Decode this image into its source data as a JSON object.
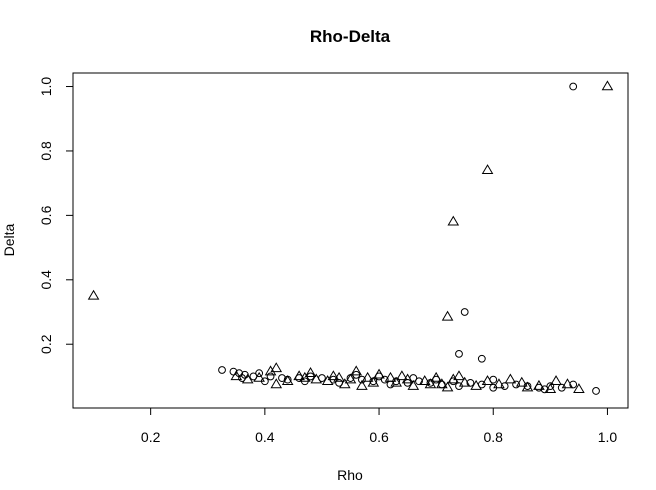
{
  "chart_data": {
    "type": "scatter",
    "title": "Rho-Delta",
    "xlabel": "Rho",
    "ylabel": "Delta",
    "xlim": [
      0.064,
      1.036
    ],
    "ylim": [
      0.002,
      1.042
    ],
    "x_ticks": [
      0.2,
      0.4,
      0.6,
      0.8,
      1.0
    ],
    "x_tick_labels": [
      "0.2",
      "0.4",
      "0.6",
      "0.8",
      "1.0"
    ],
    "y_ticks": [
      0.2,
      0.4,
      0.6,
      0.8,
      1.0
    ],
    "y_tick_labels": [
      "0.2",
      "0.4",
      "0.6",
      "0.8",
      "1.0"
    ],
    "grid": false,
    "legend": "none",
    "series": [
      {
        "marker": "circle",
        "points": [
          [
            0.94,
            1.0
          ],
          [
            0.75,
            0.3
          ],
          [
            0.74,
            0.17
          ],
          [
            0.78,
            0.155
          ],
          [
            0.98,
            0.055
          ],
          [
            0.325,
            0.12
          ],
          [
            0.345,
            0.115
          ],
          [
            0.355,
            0.11
          ],
          [
            0.365,
            0.105
          ],
          [
            0.38,
            0.1
          ],
          [
            0.39,
            0.11
          ],
          [
            0.41,
            0.1
          ],
          [
            0.43,
            0.095
          ],
          [
            0.46,
            0.095
          ],
          [
            0.48,
            0.1
          ],
          [
            0.5,
            0.095
          ],
          [
            0.52,
            0.09
          ],
          [
            0.55,
            0.095
          ],
          [
            0.57,
            0.09
          ],
          [
            0.59,
            0.085
          ],
          [
            0.61,
            0.09
          ],
          [
            0.63,
            0.085
          ],
          [
            0.65,
            0.08
          ],
          [
            0.67,
            0.085
          ],
          [
            0.69,
            0.08
          ],
          [
            0.71,
            0.075
          ],
          [
            0.73,
            0.085
          ],
          [
            0.76,
            0.08
          ],
          [
            0.78,
            0.075
          ],
          [
            0.8,
            0.09
          ],
          [
            0.82,
            0.07
          ],
          [
            0.84,
            0.075
          ],
          [
            0.86,
            0.07
          ],
          [
            0.88,
            0.065
          ],
          [
            0.9,
            0.07
          ],
          [
            0.92,
            0.065
          ],
          [
            0.94,
            0.075
          ],
          [
            0.4,
            0.085
          ],
          [
            0.44,
            0.09
          ],
          [
            0.53,
            0.08
          ],
          [
            0.6,
            0.1
          ],
          [
            0.66,
            0.095
          ],
          [
            0.7,
            0.09
          ],
          [
            0.74,
            0.07
          ],
          [
            0.8,
            0.065
          ],
          [
            0.89,
            0.06
          ],
          [
            0.36,
            0.095
          ],
          [
            0.47,
            0.085
          ],
          [
            0.56,
            0.105
          ],
          [
            0.62,
            0.075
          ]
        ]
      },
      {
        "marker": "triangle",
        "points": [
          [
            1.0,
            1.0
          ],
          [
            0.79,
            0.74
          ],
          [
            0.73,
            0.58
          ],
          [
            0.1,
            0.35
          ],
          [
            0.72,
            0.285
          ],
          [
            0.35,
            0.1
          ],
          [
            0.37,
            0.09
          ],
          [
            0.39,
            0.095
          ],
          [
            0.41,
            0.115
          ],
          [
            0.42,
            0.125
          ],
          [
            0.42,
            0.075
          ],
          [
            0.44,
            0.085
          ],
          [
            0.46,
            0.1
          ],
          [
            0.48,
            0.11
          ],
          [
            0.49,
            0.09
          ],
          [
            0.51,
            0.085
          ],
          [
            0.52,
            0.1
          ],
          [
            0.54,
            0.075
          ],
          [
            0.55,
            0.09
          ],
          [
            0.56,
            0.115
          ],
          [
            0.58,
            0.095
          ],
          [
            0.59,
            0.08
          ],
          [
            0.6,
            0.105
          ],
          [
            0.62,
            0.095
          ],
          [
            0.63,
            0.08
          ],
          [
            0.65,
            0.09
          ],
          [
            0.66,
            0.07
          ],
          [
            0.68,
            0.085
          ],
          [
            0.7,
            0.095
          ],
          [
            0.71,
            0.075
          ],
          [
            0.72,
            0.065
          ],
          [
            0.73,
            0.09
          ],
          [
            0.74,
            0.1
          ],
          [
            0.75,
            0.08
          ],
          [
            0.77,
            0.07
          ],
          [
            0.79,
            0.085
          ],
          [
            0.81,
            0.075
          ],
          [
            0.83,
            0.09
          ],
          [
            0.85,
            0.08
          ],
          [
            0.86,
            0.065
          ],
          [
            0.88,
            0.07
          ],
          [
            0.9,
            0.06
          ],
          [
            0.91,
            0.085
          ],
          [
            0.93,
            0.075
          ],
          [
            0.95,
            0.06
          ],
          [
            0.53,
            0.095
          ],
          [
            0.57,
            0.07
          ],
          [
            0.64,
            0.1
          ],
          [
            0.69,
            0.075
          ],
          [
            0.47,
            0.095
          ]
        ]
      }
    ]
  }
}
